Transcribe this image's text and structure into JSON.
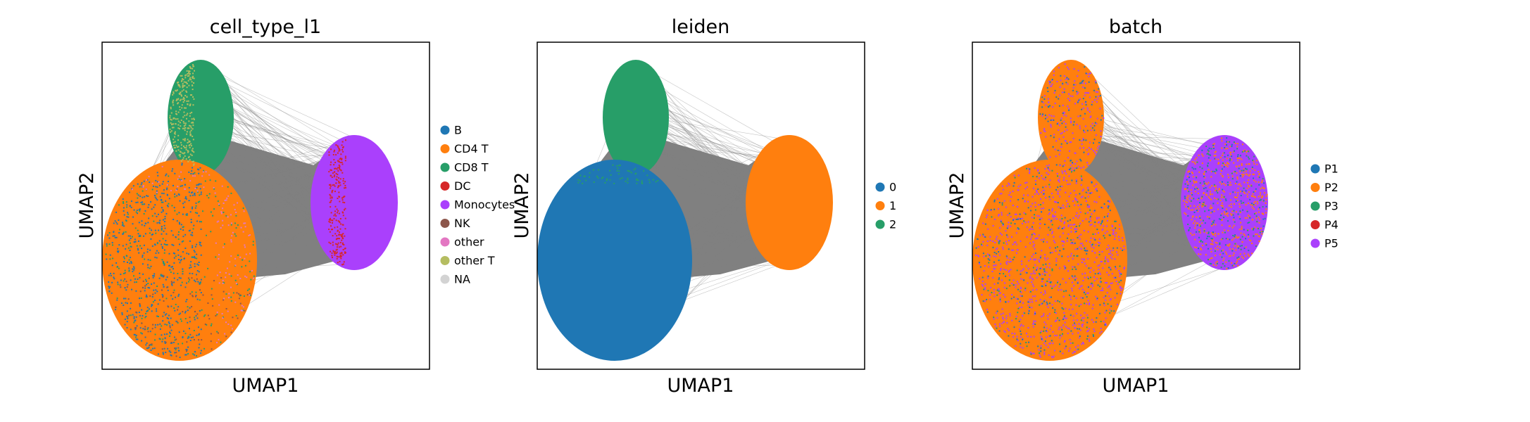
{
  "figure": {
    "background": "#ffffff",
    "edge_color": "#808080"
  },
  "chart_data": [
    {
      "type": "scatter",
      "title": "cell_type_l1",
      "xlabel": "UMAP1",
      "ylabel": "UMAP2",
      "show_ticks": false,
      "grid": false,
      "legend_position": "right",
      "series": [
        {
          "name": "B",
          "color": "#1f77b4"
        },
        {
          "name": "CD4 T",
          "color": "#ff7f0e"
        },
        {
          "name": "CD8 T",
          "color": "#279e68"
        },
        {
          "name": "DC",
          "color": "#d62728"
        },
        {
          "name": "Monocytes",
          "color": "#aa40fc"
        },
        {
          "name": "NK",
          "color": "#8c564b"
        },
        {
          "name": "other",
          "color": "#e377c2"
        },
        {
          "name": "other T",
          "color": "#b5bd61"
        },
        {
          "name": "NA",
          "color": "#d3d3d3"
        }
      ]
    },
    {
      "type": "scatter",
      "title": "leiden",
      "xlabel": "UMAP1",
      "ylabel": "UMAP2",
      "show_ticks": false,
      "grid": false,
      "legend_position": "right",
      "series": [
        {
          "name": "0",
          "color": "#1f77b4"
        },
        {
          "name": "1",
          "color": "#ff7f0e"
        },
        {
          "name": "2",
          "color": "#279e68"
        }
      ]
    },
    {
      "type": "scatter",
      "title": "batch",
      "xlabel": "UMAP1",
      "ylabel": "UMAP2",
      "show_ticks": false,
      "grid": false,
      "legend_position": "right",
      "series": [
        {
          "name": "P1",
          "color": "#1f77b4"
        },
        {
          "name": "P2",
          "color": "#ff7f0e"
        },
        {
          "name": "P3",
          "color": "#279e68"
        },
        {
          "name": "P4",
          "color": "#d62728"
        },
        {
          "name": "P5",
          "color": "#aa40fc"
        }
      ]
    }
  ]
}
